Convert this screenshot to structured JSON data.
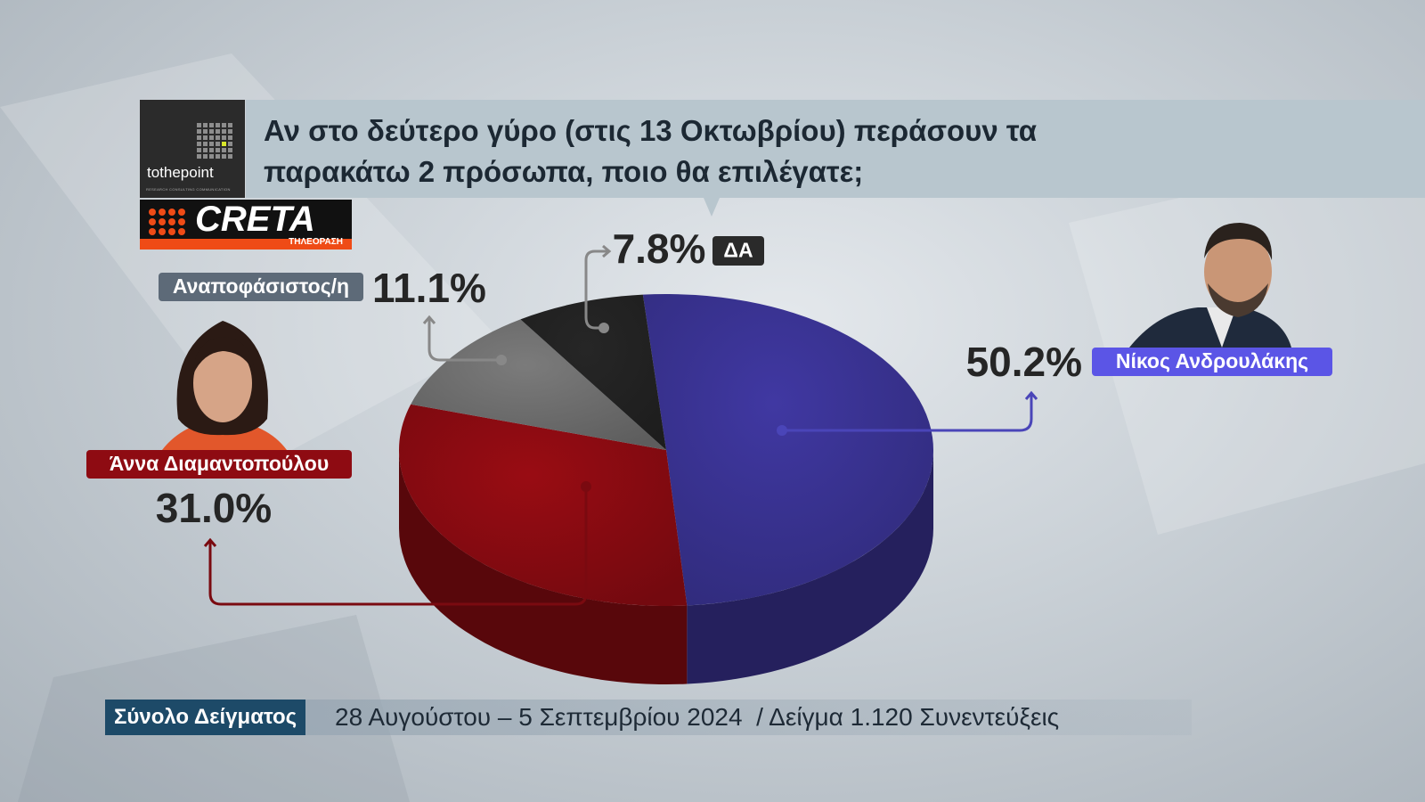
{
  "branding": {
    "agency": "tothepoint",
    "agency_tagline": "RESEARCH CONSULTING COMMUNICATION",
    "channel": "CRETA",
    "channel_sub": "ΤΗΛΕΟΡΑΣΗ"
  },
  "chart_data": {
    "type": "pie",
    "title": "Αν στο δεύτερο γύρο (στις 13 Οκτωβρίου) περάσουν τα παρακάτω 2 πρόσωπα, ποιο θα επιλέγατε;",
    "categories": [
      "Νίκος Ανδρουλάκης",
      "Άννα Διαμαντοπούλου",
      "Αναποφάσιστος/η",
      "ΔΑ"
    ],
    "values": [
      50.2,
      31.0,
      11.1,
      7.8
    ],
    "value_labels": [
      "50.2%",
      "31.0%",
      "11.1%",
      "7.8%"
    ],
    "colors": [
      "#3b3496",
      "#8e0b12",
      "#727272",
      "#232323"
    ]
  },
  "footer": {
    "label": "Σύνολο Δείγματος",
    "text": "28 Αυγούστου – 5 Σεπτεμβρίου 2024  / Δείγμα 1.120 Συνεντεύξεις"
  }
}
